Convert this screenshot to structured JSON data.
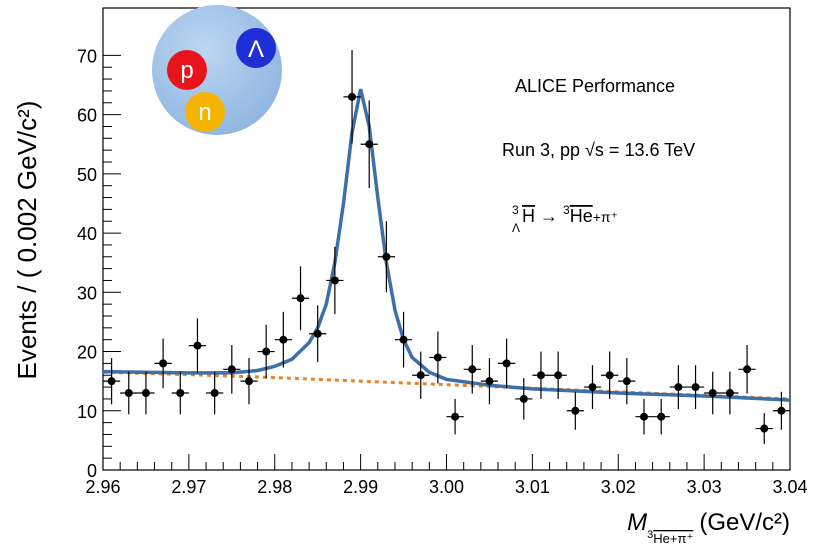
{
  "chart_data": {
    "type": "errorbar",
    "y_label": "Events / ( 0.002 GeV/c²)",
    "x_label": {
      "symbol": "M",
      "sub_mass": "3",
      "sub_nucleus": "He+π⁺",
      "unit": "(GeV/c²)"
    },
    "annotations": {
      "experiment": "ALICE Performance",
      "run": "Run 3, pp √s = 13.6 TeV",
      "decay": {
        "mass": "3",
        "hyper": "Λ",
        "nucleus": "H",
        "arrow": " → ",
        "product_mass": "3",
        "product": "He",
        "rest": "+π⁺"
      }
    },
    "logo": {
      "proton": "p",
      "neutron": "n",
      "lambda": "Λ"
    },
    "xlim": [
      2.96,
      3.04
    ],
    "xticks": [
      2.96,
      2.97,
      2.98,
      2.99,
      {
        "value": 3.0,
        "label": "3.00"
      },
      3.01,
      3.02,
      3.03,
      3.04
    ],
    "ylim": [
      0,
      78
    ],
    "yticks": [
      0,
      10,
      20,
      30,
      40,
      50,
      60,
      70
    ],
    "points": {
      "color": "#000000",
      "x": [
        2.961,
        2.963,
        2.965,
        2.967,
        2.969,
        2.971,
        2.973,
        2.975,
        2.977,
        2.979,
        2.981,
        2.983,
        2.985,
        2.987,
        2.989,
        2.991,
        2.993,
        2.995,
        2.997,
        2.999,
        3.001,
        3.003,
        3.005,
        3.007,
        3.009,
        3.011,
        3.013,
        3.015,
        3.017,
        3.019,
        3.021,
        3.023,
        3.025,
        3.027,
        3.029,
        3.031,
        3.033,
        3.035,
        3.037,
        3.039
      ],
      "values": [
        15,
        13,
        13,
        18,
        13,
        21,
        13,
        17,
        15,
        20,
        22,
        29,
        23,
        32,
        63,
        55,
        36,
        22,
        16,
        19,
        9,
        17,
        15,
        18,
        12,
        16,
        16,
        10,
        14,
        16,
        15,
        9,
        9,
        14,
        14,
        13,
        13,
        17,
        7,
        10
      ],
      "errors": [
        3.9,
        3.6,
        3.6,
        4.2,
        3.6,
        4.6,
        3.6,
        4.1,
        3.9,
        4.5,
        4.7,
        5.4,
        4.8,
        5.7,
        7.9,
        7.4,
        6,
        4.7,
        4,
        4.4,
        3,
        4.1,
        3.9,
        4.2,
        3.5,
        4,
        4,
        3.2,
        3.7,
        4,
        3.9,
        3,
        3,
        3.7,
        3.7,
        3.6,
        3.6,
        4.1,
        2.6,
        3.2
      ]
    },
    "fit": {
      "color": "#3d6fa8",
      "x": [
        2.96,
        2.97,
        2.975,
        2.978,
        2.98,
        2.982,
        2.984,
        2.985,
        2.986,
        2.987,
        2.988,
        2.989,
        2.99,
        2.991,
        2.992,
        2.993,
        2.994,
        2.995,
        2.996,
        2.998,
        3.0,
        3.005,
        3.01,
        3.02,
        3.03,
        3.04
      ],
      "values": [
        16.6,
        16.4,
        16.4,
        16.8,
        17.5,
        18.7,
        21.5,
        24,
        28,
        35,
        45,
        57,
        64.3,
        58,
        46,
        35,
        27,
        22,
        19,
        16.5,
        15.3,
        14.3,
        13.7,
        13.0,
        12.5,
        11.8
      ]
    },
    "background": {
      "color": "#e8842a",
      "style": "dashed",
      "x": [
        2.96,
        2.97,
        2.98,
        2.99,
        3.0,
        3.01,
        3.02,
        3.03,
        3.04
      ],
      "values": [
        16.5,
        16.1,
        15.6,
        15.0,
        14.4,
        13.8,
        13.2,
        12.6,
        12.0
      ]
    }
  }
}
